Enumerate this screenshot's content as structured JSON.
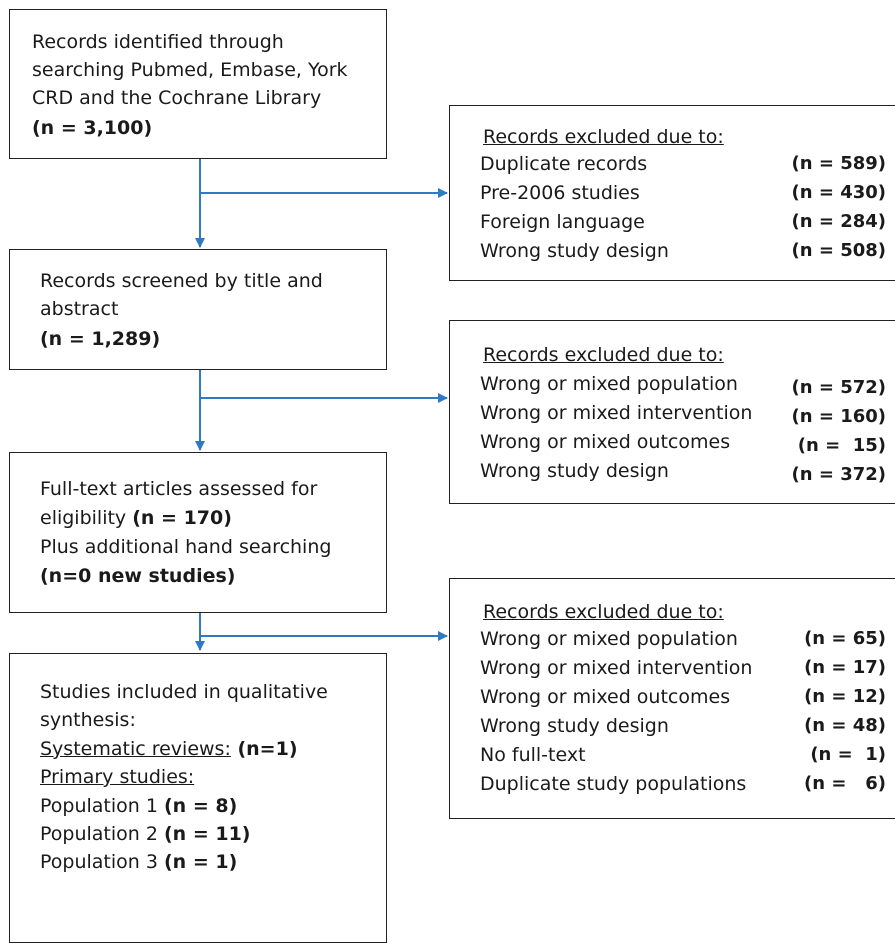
{
  "box1": {
    "lines": [
      "Records identified through",
      "searching Pubmed, Embase, York",
      "CRD and the Cochrane Library"
    ],
    "count": "(n = 3,100)"
  },
  "excl1": {
    "title": "Records excluded due to:",
    "items": [
      {
        "label": "Duplicate records",
        "count": "(n = 589)"
      },
      {
        "label": "Pre-2006 studies",
        "count": "(n = 430)"
      },
      {
        "label": "Foreign language",
        "count": "(n = 284)"
      },
      {
        "label": "Wrong study design",
        "count": "(n = 508)"
      }
    ]
  },
  "box2": {
    "lines": [
      "Records screened by title and",
      "abstract"
    ],
    "count": "(n = 1,289)"
  },
  "excl2": {
    "title": "Records excluded due to:",
    "items": [
      {
        "label": "Wrong or mixed population",
        "count": "(n = 572)"
      },
      {
        "label": "Wrong or mixed intervention",
        "count": "(n = 160)"
      },
      {
        "label": "Wrong or mixed outcomes",
        "count": "(n =  15)"
      },
      {
        "label": "Wrong study design",
        "count": "(n = 372)"
      }
    ]
  },
  "box3": {
    "line1": "Full-text articles assessed for",
    "line2_text": "eligibility ",
    "line2_count": "(n = 170)",
    "line3": "Plus additional hand searching",
    "line4": "(n=0 new studies)"
  },
  "excl3": {
    "title": "Records excluded due to:",
    "items": [
      {
        "label": "Wrong or mixed population",
        "count": "(n = 65)"
      },
      {
        "label": "Wrong or mixed intervention",
        "count": "(n = 17)"
      },
      {
        "label": "Wrong or mixed outcomes",
        "count": "(n = 12)"
      },
      {
        "label": "Wrong study design",
        "count": "(n = 48)"
      },
      {
        "label": "No full-text",
        "count": "(n =  1)"
      },
      {
        "label": "Duplicate study populations",
        "count": "(n =   6)"
      }
    ]
  },
  "box4": {
    "line1": "Studies included in qualitative",
    "line2": "synthesis:",
    "sr_label": "Systematic reviews:",
    "sr_count": " (n=1)",
    "primary_label": "Primary studies:",
    "populations": [
      {
        "label": "Population 1 ",
        "count": "(n = 8)"
      },
      {
        "label": "Population 2 ",
        "count": "(n = 11)"
      },
      {
        "label": "Population 3 ",
        "count": "(n = 1)"
      }
    ]
  },
  "colors": {
    "arrow": "#2f7ac2",
    "border": "#222222"
  }
}
